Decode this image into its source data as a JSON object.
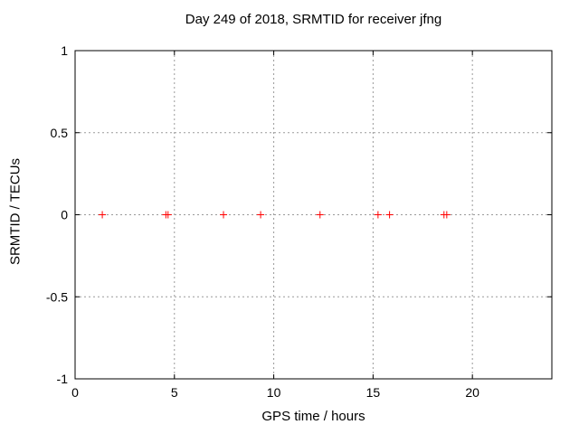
{
  "chart_data": {
    "type": "scatter",
    "title": "Day 249 of 2018, SRMTID for receiver jfng",
    "xlabel": "GPS time / hours",
    "ylabel": "SRMTID / TECUs",
    "x": [
      1.37,
      4.57,
      4.68,
      7.47,
      9.34,
      12.33,
      15.25,
      15.83,
      18.57,
      18.71
    ],
    "y": [
      0,
      0,
      0,
      0,
      0,
      0,
      0,
      0,
      0,
      0
    ],
    "xlim": [
      0,
      24
    ],
    "ylim": [
      -1,
      1
    ],
    "xticks": [
      0,
      5,
      10,
      15,
      20
    ],
    "xtick_labels": [
      "0",
      "5",
      "10",
      "15",
      "20"
    ],
    "yticks": [
      -1,
      -0.5,
      0,
      0.5,
      1
    ],
    "ytick_labels": [
      "-1",
      "-0.5",
      "0",
      "0.5",
      "1"
    ],
    "grid": true,
    "legend": "none",
    "marker": "plus",
    "colors": {
      "marker": "#ff0000",
      "grid": "#9a9a9a",
      "border": "#000000",
      "text": "#000000",
      "background": "#ffffff"
    }
  }
}
